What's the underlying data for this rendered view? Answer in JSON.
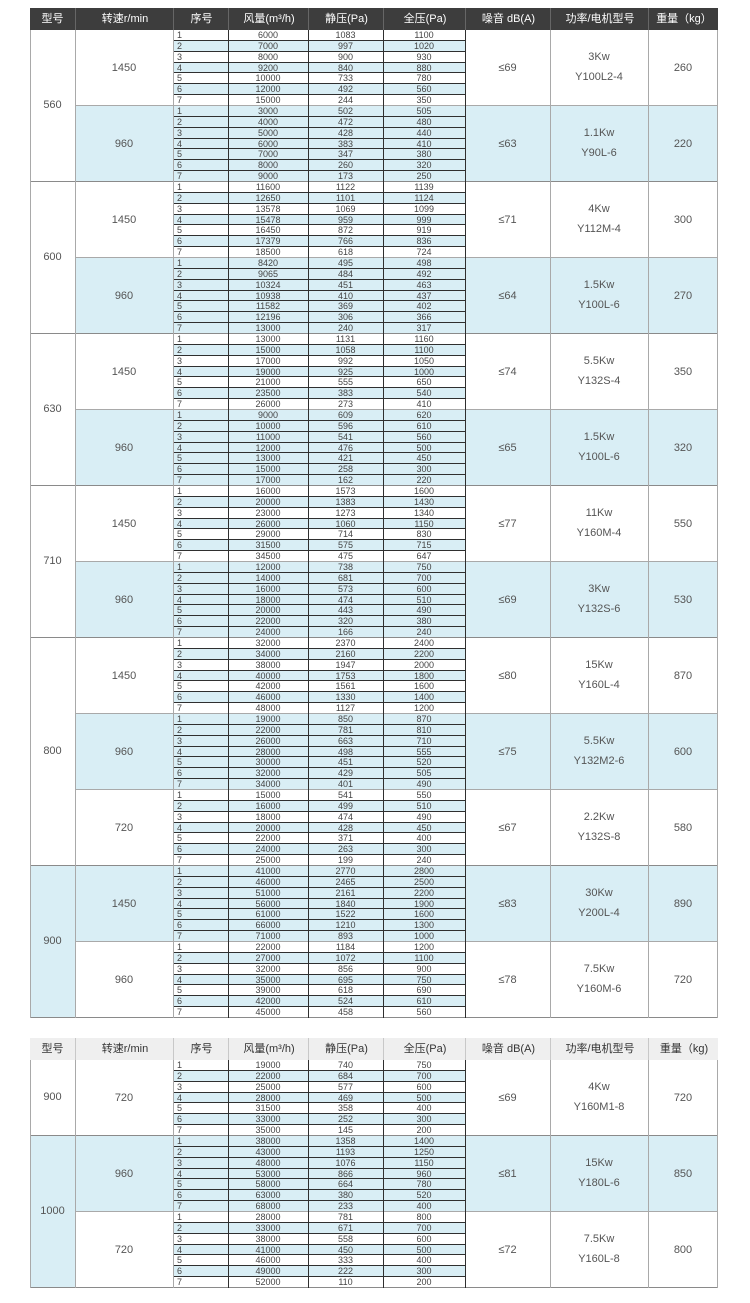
{
  "headers_top": [
    "型号",
    "转速r/min",
    "序号",
    "风量(m³/h)",
    "静压(Pa)",
    "全压(Pa)",
    "噪音 dB(A)",
    "功率/电机型号",
    "重量（kg）"
  ],
  "headers_bottom": [
    "型号",
    "转速r/min",
    "序号",
    "风量(m³/h)",
    "静压(Pa)",
    "全压(Pa)",
    "噪音 dB(A)",
    "功率/电机型号",
    "重量（kg)"
  ],
  "table1": {
    "models": [
      {
        "model": "560",
        "groups": [
          {
            "speed": "1450",
            "noise": "≤69",
            "power": "3Kw",
            "motor": "Y100L2-4",
            "weight": "260",
            "shade": false,
            "rows": [
              [
                "1",
                "6000",
                "1083",
                "1100"
              ],
              [
                "2",
                "7000",
                "997",
                "1020"
              ],
              [
                "3",
                "8000",
                "900",
                "930"
              ],
              [
                "4",
                "9200",
                "840",
                "880"
              ],
              [
                "5",
                "10000",
                "733",
                "780"
              ],
              [
                "6",
                "12000",
                "492",
                "560"
              ],
              [
                "7",
                "15000",
                "244",
                "350"
              ]
            ]
          },
          {
            "speed": "960",
            "noise": "≤63",
            "power": "1.1Kw",
            "motor": "Y90L-6",
            "weight": "220",
            "shade": true,
            "rows": [
              [
                "1",
                "3000",
                "502",
                "505"
              ],
              [
                "2",
                "4000",
                "472",
                "480"
              ],
              [
                "3",
                "5000",
                "428",
                "440"
              ],
              [
                "4",
                "6000",
                "383",
                "410"
              ],
              [
                "5",
                "7000",
                "347",
                "380"
              ],
              [
                "6",
                "8000",
                "260",
                "320"
              ],
              [
                "7",
                "9000",
                "173",
                "250"
              ]
            ]
          }
        ]
      },
      {
        "model": "600",
        "groups": [
          {
            "speed": "1450",
            "noise": "≤71",
            "power": "4Kw",
            "motor": "Y112M-4",
            "weight": "300",
            "shade": false,
            "rows": [
              [
                "1",
                "11600",
                "1122",
                "1139"
              ],
              [
                "2",
                "12650",
                "1101",
                "1124"
              ],
              [
                "3",
                "13578",
                "1069",
                "1099"
              ],
              [
                "4",
                "15478",
                "959",
                "999"
              ],
              [
                "5",
                "16450",
                "872",
                "919"
              ],
              [
                "6",
                "17379",
                "766",
                "836"
              ],
              [
                "7",
                "18500",
                "618",
                "724"
              ]
            ]
          },
          {
            "speed": "960",
            "noise": "≤64",
            "power": "1.5Kw",
            "motor": "Y100L-6",
            "weight": "270",
            "shade": true,
            "rows": [
              [
                "1",
                "8420",
                "495",
                "498"
              ],
              [
                "2",
                "9065",
                "484",
                "492"
              ],
              [
                "3",
                "10324",
                "451",
                "463"
              ],
              [
                "4",
                "10938",
                "410",
                "437"
              ],
              [
                "5",
                "11582",
                "369",
                "402"
              ],
              [
                "6",
                "12196",
                "306",
                "366"
              ],
              [
                "7",
                "13000",
                "240",
                "317"
              ]
            ]
          }
        ]
      },
      {
        "model": "630",
        "groups": [
          {
            "speed": "1450",
            "noise": "≤74",
            "power": "5.5Kw",
            "motor": "Y132S-4",
            "weight": "350",
            "shade": false,
            "rows": [
              [
                "1",
                "13000",
                "1131",
                "1160"
              ],
              [
                "2",
                "15000",
                "1058",
                "1100"
              ],
              [
                "3",
                "17000",
                "992",
                "1050"
              ],
              [
                "4",
                "19000",
                "925",
                "1000"
              ],
              [
                "5",
                "21000",
                "555",
                "650"
              ],
              [
                "6",
                "23500",
                "383",
                "540"
              ],
              [
                "7",
                "26000",
                "273",
                "410"
              ]
            ]
          },
          {
            "speed": "960",
            "noise": "≤65",
            "power": "1.5Kw",
            "motor": "Y100L-6",
            "weight": "320",
            "shade": true,
            "rows": [
              [
                "1",
                "9000",
                "609",
                "620"
              ],
              [
                "2",
                "10000",
                "596",
                "610"
              ],
              [
                "3",
                "11000",
                "541",
                "560"
              ],
              [
                "4",
                "12000",
                "476",
                "500"
              ],
              [
                "5",
                "13000",
                "421",
                "450"
              ],
              [
                "6",
                "15000",
                "258",
                "300"
              ],
              [
                "7",
                "17000",
                "162",
                "220"
              ]
            ]
          }
        ]
      },
      {
        "model": "710",
        "groups": [
          {
            "speed": "1450",
            "noise": "≤77",
            "power": "11Kw",
            "motor": "Y160M-4",
            "weight": "550",
            "shade": false,
            "rows": [
              [
                "1",
                "16000",
                "1573",
                "1600"
              ],
              [
                "2",
                "20000",
                "1383",
                "1430"
              ],
              [
                "3",
                "23000",
                "1273",
                "1340"
              ],
              [
                "4",
                "26000",
                "1060",
                "1150"
              ],
              [
                "5",
                "29000",
                "714",
                "830"
              ],
              [
                "6",
                "31500",
                "575",
                "715"
              ],
              [
                "7",
                "34500",
                "475",
                "647"
              ]
            ]
          },
          {
            "speed": "960",
            "noise": "≤69",
            "power": "3Kw",
            "motor": "Y132S-6",
            "weight": "530",
            "shade": true,
            "rows": [
              [
                "1",
                "12000",
                "738",
                "750"
              ],
              [
                "2",
                "14000",
                "681",
                "700"
              ],
              [
                "3",
                "16000",
                "573",
                "600"
              ],
              [
                "4",
                "18000",
                "474",
                "510"
              ],
              [
                "5",
                "20000",
                "443",
                "490"
              ],
              [
                "6",
                "22000",
                "320",
                "380"
              ],
              [
                "7",
                "24000",
                "166",
                "240"
              ]
            ]
          }
        ]
      },
      {
        "model": "800",
        "groups": [
          {
            "speed": "1450",
            "noise": "≤80",
            "power": "15Kw",
            "motor": "Y160L-4",
            "weight": "870",
            "shade": false,
            "rows": [
              [
                "1",
                "32000",
                "2370",
                "2400"
              ],
              [
                "2",
                "34000",
                "2160",
                "2200"
              ],
              [
                "3",
                "38000",
                "1947",
                "2000"
              ],
              [
                "4",
                "40000",
                "1753",
                "1800"
              ],
              [
                "5",
                "42000",
                "1561",
                "1600"
              ],
              [
                "6",
                "46000",
                "1330",
                "1400"
              ],
              [
                "7",
                "48000",
                "1127",
                "1200"
              ]
            ]
          },
          {
            "speed": "960",
            "noise": "≤75",
            "power": "5.5Kw",
            "motor": "Y132M2-6",
            "weight": "600",
            "shade": true,
            "rows": [
              [
                "1",
                "19000",
                "850",
                "870"
              ],
              [
                "2",
                "22000",
                "781",
                "810"
              ],
              [
                "3",
                "26000",
                "663",
                "710"
              ],
              [
                "4",
                "28000",
                "498",
                "555"
              ],
              [
                "5",
                "30000",
                "451",
                "520"
              ],
              [
                "6",
                "32000",
                "429",
                "505"
              ],
              [
                "7",
                "34000",
                "401",
                "490"
              ]
            ]
          },
          {
            "speed": "720",
            "noise": "≤67",
            "power": "2.2Kw",
            "motor": "Y132S-8",
            "weight": "580",
            "shade": false,
            "rows": [
              [
                "1",
                "15000",
                "541",
                "550"
              ],
              [
                "2",
                "16000",
                "499",
                "510"
              ],
              [
                "3",
                "18000",
                "474",
                "490"
              ],
              [
                "4",
                "20000",
                "428",
                "450"
              ],
              [
                "5",
                "22000",
                "371",
                "400"
              ],
              [
                "6",
                "24000",
                "263",
                "300"
              ],
              [
                "7",
                "25000",
                "199",
                "240"
              ]
            ]
          }
        ]
      },
      {
        "model": "900",
        "groups": [
          {
            "speed": "1450",
            "noise": "≤83",
            "power": "30Kw",
            "motor": "Y200L-4",
            "weight": "890",
            "shade": true,
            "rows": [
              [
                "1",
                "41000",
                "2770",
                "2800"
              ],
              [
                "2",
                "46000",
                "2465",
                "2500"
              ],
              [
                "3",
                "51000",
                "2161",
                "2200"
              ],
              [
                "4",
                "56000",
                "1840",
                "1900"
              ],
              [
                "5",
                "61000",
                "1522",
                "1600"
              ],
              [
                "6",
                "66000",
                "1210",
                "1300"
              ],
              [
                "7",
                "71000",
                "893",
                "1000"
              ]
            ]
          },
          {
            "speed": "960",
            "noise": "≤78",
            "power": "7.5Kw",
            "motor": "Y160M-6",
            "weight": "720",
            "shade": false,
            "rows": [
              [
                "1",
                "22000",
                "1184",
                "1200"
              ],
              [
                "2",
                "27000",
                "1072",
                "1100"
              ],
              [
                "3",
                "32000",
                "856",
                "900"
              ],
              [
                "4",
                "35000",
                "695",
                "750"
              ],
              [
                "5",
                "39000",
                "618",
                "690"
              ],
              [
                "6",
                "42000",
                "524",
                "610"
              ],
              [
                "7",
                "45000",
                "458",
                "560"
              ]
            ]
          }
        ]
      }
    ]
  },
  "table2": {
    "models": [
      {
        "model": "900",
        "groups": [
          {
            "speed": "720",
            "noise": "≤69",
            "power": "4Kw",
            "motor": "Y160M1-8",
            "weight": "720",
            "shade": false,
            "rows": [
              [
                "1",
                "19000",
                "740",
                "750"
              ],
              [
                "2",
                "22000",
                "684",
                "700"
              ],
              [
                "3",
                "25000",
                "577",
                "600"
              ],
              [
                "4",
                "28000",
                "469",
                "500"
              ],
              [
                "5",
                "31500",
                "358",
                "400"
              ],
              [
                "6",
                "33000",
                "252",
                "300"
              ],
              [
                "7",
                "35000",
                "145",
                "200"
              ]
            ]
          }
        ]
      },
      {
        "model": "1000",
        "groups": [
          {
            "speed": "960",
            "noise": "≤81",
            "power": "15Kw",
            "motor": "Y180L-6",
            "weight": "850",
            "shade": true,
            "rows": [
              [
                "1",
                "38000",
                "1358",
                "1400"
              ],
              [
                "2",
                "43000",
                "1193",
                "1250"
              ],
              [
                "3",
                "48000",
                "1076",
                "1150"
              ],
              [
                "4",
                "53000",
                "866",
                "960"
              ],
              [
                "5",
                "58000",
                "664",
                "780"
              ],
              [
                "6",
                "63000",
                "380",
                "520"
              ],
              [
                "7",
                "68000",
                "233",
                "400"
              ]
            ]
          },
          {
            "speed": "720",
            "noise": "≤72",
            "power": "7.5Kw",
            "motor": "Y160L-8",
            "weight": "800",
            "shade": false,
            "rows": [
              [
                "1",
                "28000",
                "781",
                "800"
              ],
              [
                "2",
                "33000",
                "671",
                "700"
              ],
              [
                "3",
                "38000",
                "558",
                "600"
              ],
              [
                "4",
                "41000",
                "450",
                "500"
              ],
              [
                "5",
                "46000",
                "333",
                "400"
              ],
              [
                "6",
                "49000",
                "222",
                "300"
              ],
              [
                "7",
                "52000",
                "110",
                "200"
              ]
            ]
          }
        ]
      }
    ]
  }
}
